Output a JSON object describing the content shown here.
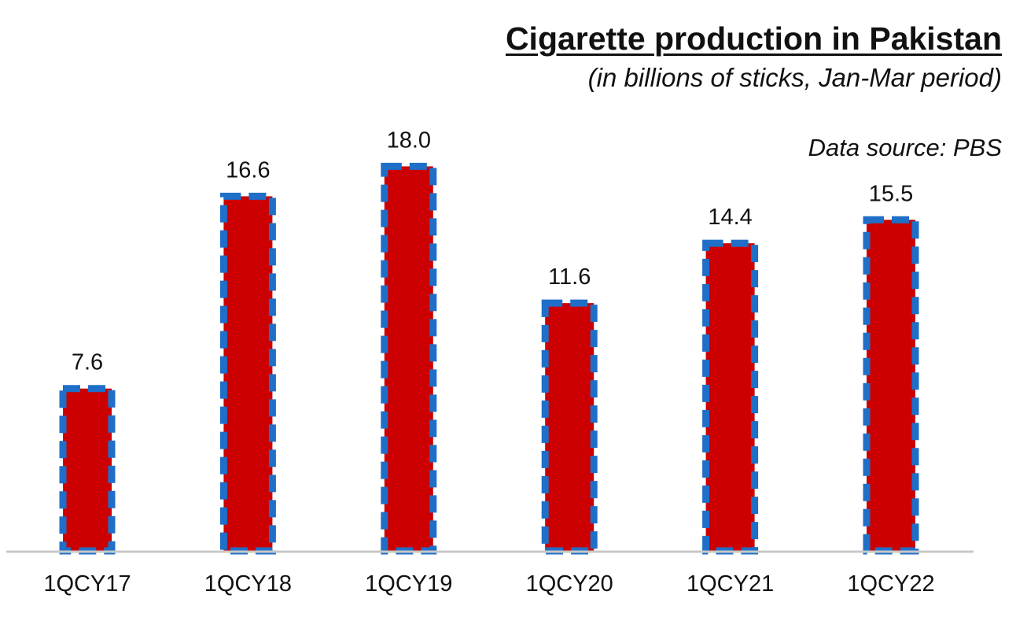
{
  "chart_data": {
    "type": "bar",
    "title": "Cigarette production  in Pakistan",
    "subtitle": "(in billions of sticks,  Jan-Mar period)",
    "source_note": "Data source: PBS",
    "xlabel": "",
    "ylabel": "",
    "categories": [
      "1QCY17",
      "1QCY18",
      "1QCY19",
      "1QCY20",
      "1QCY21",
      "1QCY22"
    ],
    "values": [
      7.6,
      16.6,
      18.0,
      11.6,
      14.4,
      15.5
    ],
    "value_labels": [
      "7.6",
      "16.6",
      "18.0",
      "11.6",
      "14.4",
      "15.5"
    ],
    "ylim": [
      0,
      18.2
    ],
    "grid": false,
    "legend": "none",
    "colors": {
      "bar_fill": "#cc0000",
      "bar_border": "#1f6fc8",
      "baseline": "#c8c8c8",
      "text": "#111111"
    }
  }
}
